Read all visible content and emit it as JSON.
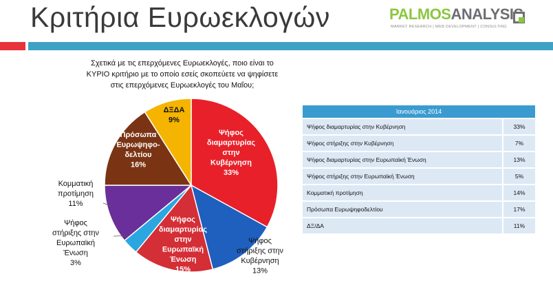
{
  "header": {
    "title": "Κριτήρια Ευρωεκλογών",
    "logo": {
      "word_part1": "PALMOS",
      "word_part2": "ANALYSIS",
      "tagline": "MARKET RESEARCH | WEB DEVELOPMENT | CONSULTING"
    }
  },
  "question": [
    "Σχετικά με τις επερχόμενες Ευρωεκλογές, ποιο είναι το",
    "ΚΥΡΙΟ κριτήριο με το οποίο εσείς σκοπεύετε να ψηφίσετε",
    "στις επερχόμενες Ευρωεκλογές του Μαΐου;"
  ],
  "colors": {
    "title": "#3a3a3a",
    "stripe_red": "#e8323c",
    "stripe_teal": "#3ea2c4",
    "table_header": "#3a9bd0",
    "table_row": "#dde8f5"
  },
  "chart_data": {
    "type": "pie",
    "title": "",
    "slices": [
      {
        "lines": [
          "Ψήφος",
          "διαμαρτυρίας",
          "στην",
          "Κυβέρνηση",
          "33%"
        ],
        "value": 33,
        "color": "#e8202a",
        "label_color": "#ffffff",
        "label_position": "inside"
      },
      {
        "lines": [
          "Ψήφος",
          "στήριξης στην",
          "Κυβέρνηση",
          "13%"
        ],
        "value": 13,
        "color": "#1f5fbe",
        "label_color": "#111111",
        "label_position": "outside"
      },
      {
        "lines": [
          "Ψήφος",
          "διαμαρτυρίας",
          "στην",
          "Ευρωπαϊκή",
          "Ένωση",
          "15%"
        ],
        "value": 15,
        "color": "#d42e36",
        "label_color": "#ffffff",
        "label_position": "inside"
      },
      {
        "lines": [
          "Ψήφος",
          "στήριξης στην",
          "Ευρωπαϊκή",
          "Ένωση",
          "3%"
        ],
        "value": 3,
        "color": "#2aa6e0",
        "label_color": "#111111",
        "label_position": "outside"
      },
      {
        "lines": [
          "Κομματική",
          "προτίμηση",
          "11%"
        ],
        "value": 11,
        "color": "#6a2f9b",
        "label_color": "#111111",
        "label_position": "outside"
      },
      {
        "lines": [
          "Πρόσωπα",
          "Ευρωψηφο-",
          "δελτίου",
          "16%"
        ],
        "value": 16,
        "color": "#7a3414",
        "label_color": "#ffffff",
        "label_position": "inside"
      },
      {
        "lines": [
          "ΔΞΔΑ",
          "9%"
        ],
        "value": 9,
        "color": "#f4b400",
        "label_color": "#111111",
        "label_position": "inside"
      }
    ]
  },
  "table": {
    "header": "Ιανουάριος 2014",
    "rows": [
      {
        "label": "Ψήφος διαμαρτυρίας στην Κυβέρνηση",
        "value": "33%"
      },
      {
        "label": "Ψήφος στήριξης στην Κυβέρνηση",
        "value": "7%"
      },
      {
        "label": "Ψήφος διαμαρτυρίας στην Ευρωπαϊκή Ένωση",
        "value": "13%"
      },
      {
        "label": "Ψήφος στήριξης στην Ευρωπαϊκή Ένωση",
        "value": "5%"
      },
      {
        "label": "Κομματική προτίμηση",
        "value": "14%"
      },
      {
        "label": "Πρόσωπα Ευρωψηφοδελτίου",
        "value": "17%"
      },
      {
        "label": "ΔΞ/ΔΑ",
        "value": "11%"
      }
    ]
  }
}
